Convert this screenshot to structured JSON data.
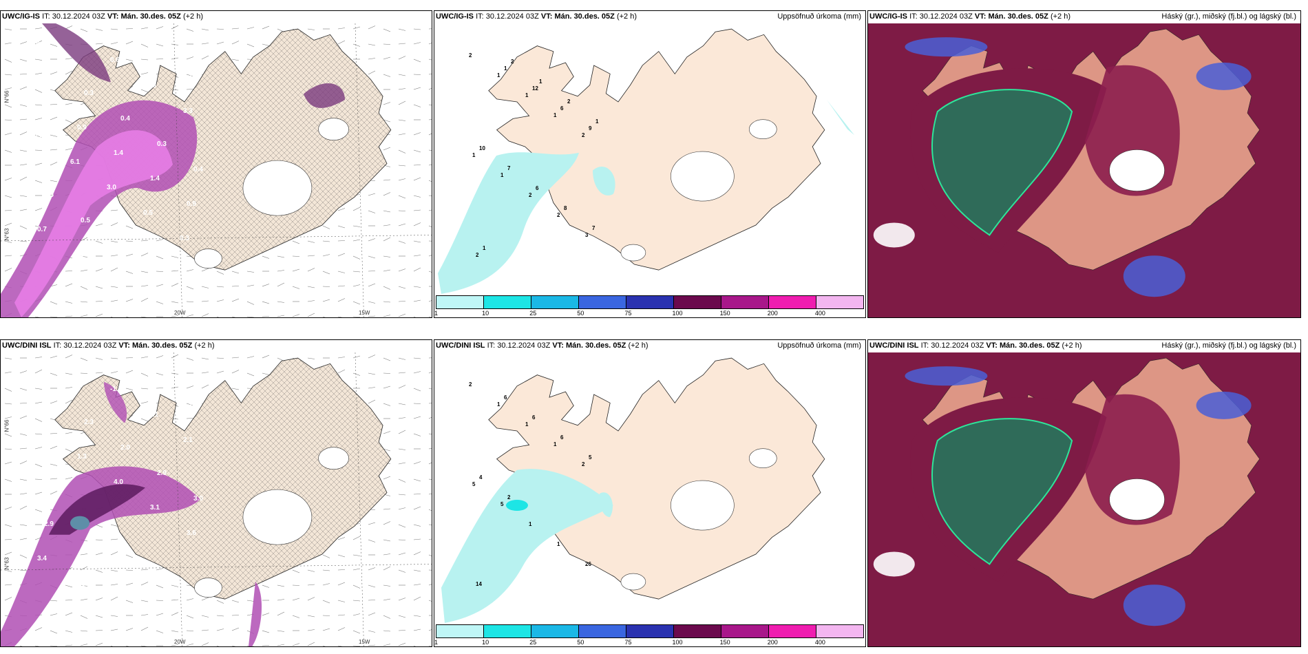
{
  "panels": [
    {
      "row": 0,
      "col": 0,
      "model": "UWC/IG-IS",
      "it": "30.12.2024 03Z",
      "vt": "Mán. 30.des. 05Z",
      "lead": "(+2 h)",
      "right": ""
    },
    {
      "row": 0,
      "col": 1,
      "model": "UWC/IG-IS",
      "it": "30.12.2024 03Z",
      "vt": "Mán. 30.des. 05Z",
      "lead": "(+2 h)",
      "right": "Uppsöfnuð úrkoma (mm)"
    },
    {
      "row": 0,
      "col": 2,
      "model": "UWC/IG-IS",
      "it": "30.12.2024 03Z",
      "vt": "Mán. 30.des. 05Z",
      "lead": "(+2 h)",
      "right": "Háský (gr.), miðský (fj.bl.) og lágský (bl.)"
    },
    {
      "row": 1,
      "col": 0,
      "model": "UWC/DINI ISL",
      "it": "30.12.2024 03Z",
      "vt": "Mán. 30.des. 05Z",
      "lead": "(+2 h)",
      "right": ""
    },
    {
      "row": 1,
      "col": 1,
      "model": "UWC/DINI ISL",
      "it": "30.12.2024 03Z",
      "vt": "Mán. 30.des. 05Z",
      "lead": "(+2 h)",
      "right": "Uppsöfnuð úrkoma (mm)"
    },
    {
      "row": 1,
      "col": 2,
      "model": "UWC/DINI ISL",
      "it": "30.12.2024 03Z",
      "vt": "Mán. 30.des. 05Z",
      "lead": "(+2 h)",
      "right": "Háský (gr.), miðský (fj.bl.) og lágský (bl.)"
    }
  ],
  "it_label": "IT:",
  "vt_label": "VT:",
  "lon_labels": [
    "20W",
    "15W"
  ],
  "lat_labels": [
    "N°66",
    "N°63"
  ],
  "colorbar": {
    "ticks": [
      "1",
      "10",
      "25",
      "50",
      "75",
      "100",
      "150",
      "200",
      "400"
    ],
    "colors": [
      "#bff6f6",
      "#1de5e5",
      "#1bb8e6",
      "#3a66e0",
      "#2a32b0",
      "#6b0a4d",
      "#a8178a",
      "#ef1db0",
      "#f3b6f0"
    ]
  },
  "colors": {
    "land": "#f3e6d7",
    "precip": "#b8f2f0",
    "dark_red": "#7e1b45",
    "green_cloud": "#2f6b59",
    "blue_cloud": "#4a5fd6"
  },
  "precip_top": {
    "labels": [
      "2",
      "1",
      "1",
      "1",
      "2",
      "1",
      "1",
      "2",
      "2",
      "3",
      "2",
      "1",
      "12",
      "6",
      "9",
      "10",
      "7",
      "6",
      "8",
      "7",
      "1",
      "2",
      "1",
      "2",
      "1"
    ]
  },
  "precip_bot": {
    "labels": [
      "2",
      "1",
      "1",
      "1",
      "2",
      "5",
      "5",
      "1",
      "1",
      "26",
      "14",
      "6",
      "6",
      "6",
      "5",
      "4",
      "2"
    ]
  },
  "wind_top": {
    "labels": [
      "0.2",
      "0.3",
      "0.3",
      "0.4",
      "0.3",
      "0.4",
      "0.5",
      "0.5",
      "0.4",
      "0.3",
      "0.9",
      "1.5",
      "0.9",
      "1.4",
      "1.4",
      "0.9",
      "0.7",
      "1.2",
      "0.6",
      "4.6",
      "3.3",
      "2.0",
      "6.1",
      "3.0",
      "0.5",
      "0.3",
      "0.4"
    ]
  },
  "wind_bot": {
    "labels": [
      "0.3",
      "0.5",
      "2.3",
      "2.0",
      "2.9",
      "3.0",
      "2.9",
      "1.0",
      "0.4",
      "0.8",
      "0.3",
      "14.8",
      "1.3",
      "4.0",
      "3.1",
      "3.6",
      "3.4",
      "-6.5",
      "-1.5",
      "-2.1",
      "2.1"
    ]
  }
}
